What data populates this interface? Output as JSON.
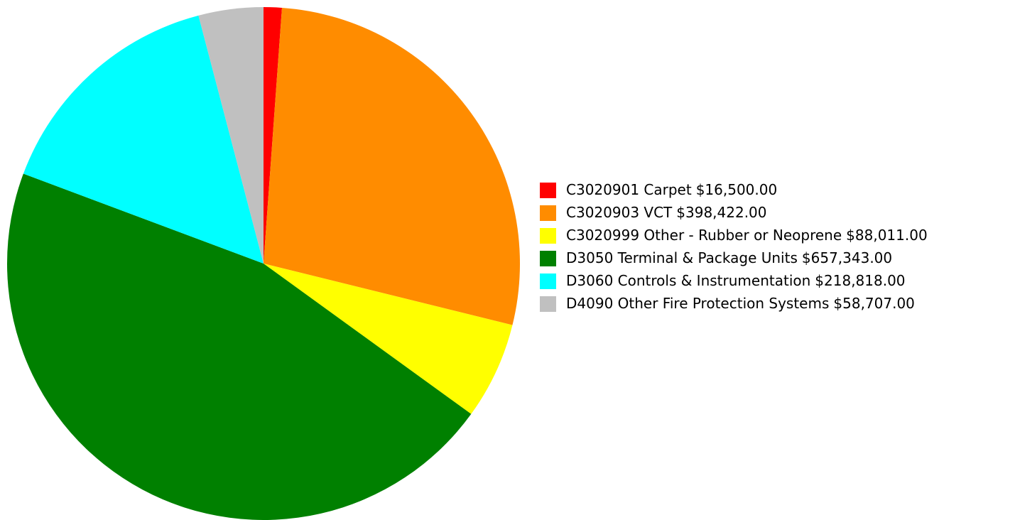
{
  "chart_data": {
    "type": "pie",
    "categories": [
      "C3020901 Carpet",
      "C3020903 VCT",
      "C3020999 Other - Rubber or Neoprene",
      "D3050 Terminal & Package Units",
      "D3060 Controls & Instrumentation",
      "D4090 Other Fire Protection Systems"
    ],
    "values": [
      16500,
      398422,
      88011,
      657343,
      218818,
      58707
    ],
    "value_labels": [
      "$16,500.00",
      "$398,422.00",
      "$88,011.00",
      "$657,343.00",
      "$218,818.00",
      "$58,707.00"
    ],
    "colors": [
      "#ff0000",
      "#ff8c00",
      "#ffff00",
      "#008000",
      "#00ffff",
      "#c0c0c0"
    ],
    "legend": "right"
  }
}
